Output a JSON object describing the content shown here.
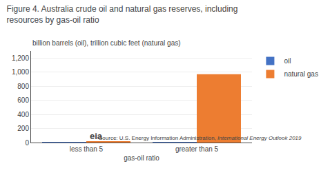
{
  "chart_data": {
    "type": "bar",
    "title": "Figure 4. Australia crude oil and natural gas reserves, including",
    "subtitle": "resources by gas-oil ratio",
    "ylabel": "billion barrels (oil), trillion cubic feet (natural gas)",
    "xlabel": "gas-oil ratio",
    "categories": [
      "less than 5",
      "greater than 5"
    ],
    "series": [
      {
        "name": "oil",
        "color": "#4472c4",
        "values": [
          4,
          2
        ]
      },
      {
        "name": "natural gas",
        "color": "#ed7d31",
        "values": [
          18,
          970
        ]
      }
    ],
    "ylim": [
      0,
      1300
    ],
    "yticks": [
      0,
      200,
      400,
      600,
      800,
      {
        "value": 1000,
        "label": "1,000"
      },
      {
        "value": 1200,
        "label": "1,200"
      }
    ],
    "grid": true,
    "legend": "right",
    "annotations": [
      "eia",
      "Source: U.S. Energy Information Administration, ",
      "International Energy Outlook 2019"
    ]
  }
}
